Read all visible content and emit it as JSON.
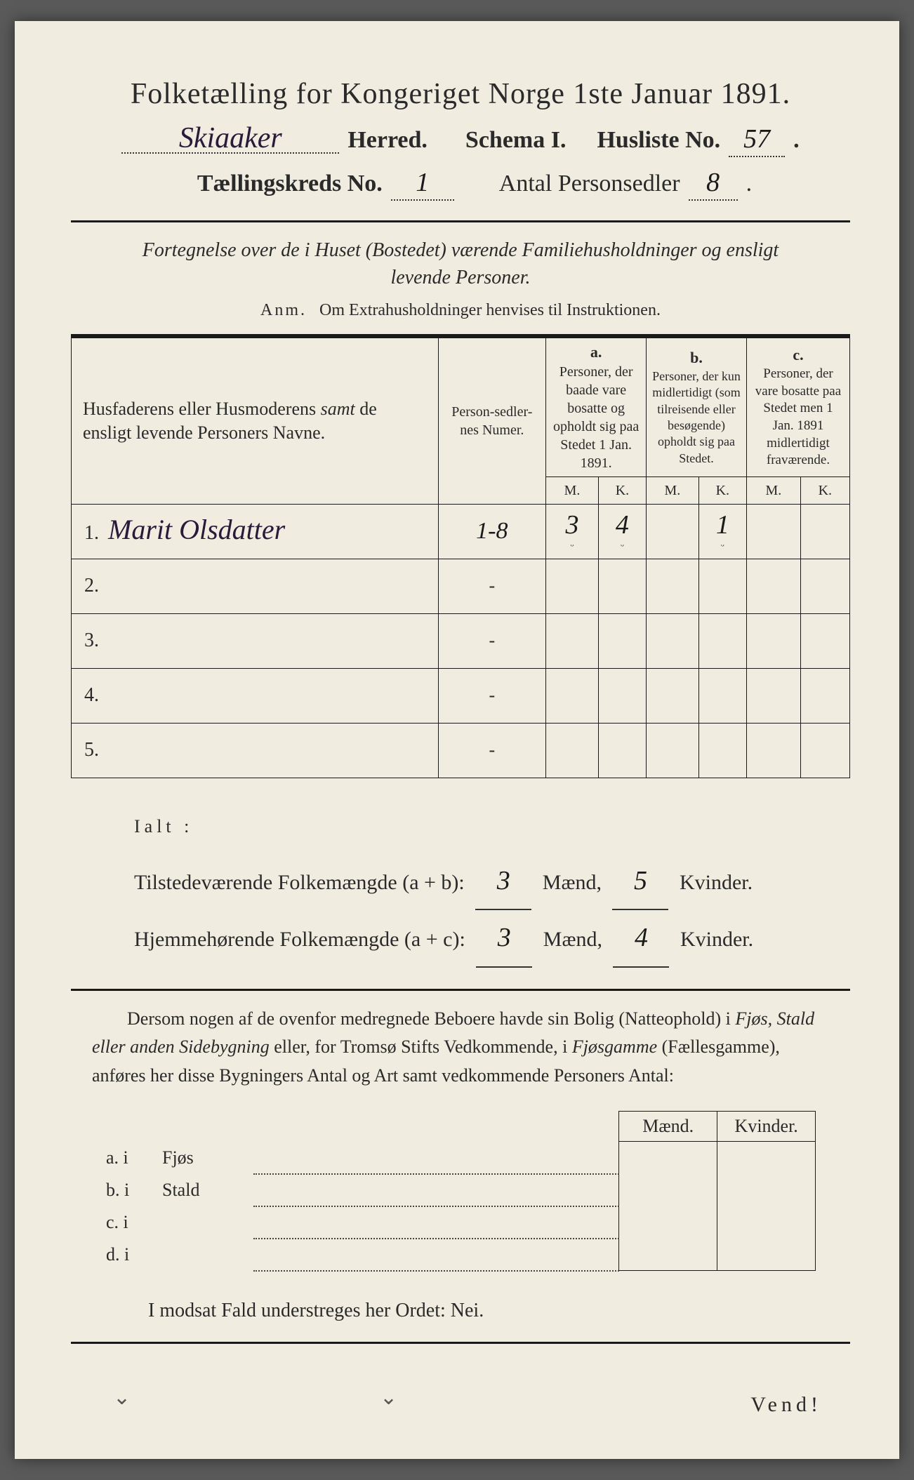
{
  "title": "Folketælling for Kongeriget Norge 1ste Januar 1891.",
  "header": {
    "herred_value": "Skiaaker",
    "herred_label": "Herred.",
    "schema_label": "Schema I.",
    "husliste_label": "Husliste No.",
    "husliste_value": "57",
    "kreds_label": "Tællingskreds No.",
    "kreds_value": "1",
    "antal_label": "Antal Personsedler",
    "antal_value": "8"
  },
  "subtitle": "Fortegnelse over de i Huset (Bostedet) værende Familiehusholdninger og ensligt levende Personer.",
  "anm_label": "Anm.",
  "anm_text": "Om Extrahusholdninger henvises til Instruktionen.",
  "table": {
    "col_name": "Husfaderens eller Husmoderens samt de ensligt levende Personers Navne.",
    "col_num": "Person-sedler-nes Numer.",
    "col_a_label": "a.",
    "col_a_text": "Personer, der baade vare bosatte og opholdt sig paa Stedet 1 Jan. 1891.",
    "col_b_label": "b.",
    "col_b_text": "Personer, der kun midlertidigt (som tilreisende eller besøgende) opholdt sig paa Stedet.",
    "col_c_label": "c.",
    "col_c_text": "Personer, der vare bosatte paa Stedet men 1 Jan. 1891 midlertidigt fraværende.",
    "m": "M.",
    "k": "K.",
    "rows": [
      {
        "n": "1.",
        "name": "Marit Olsdatter",
        "num": "1-8",
        "aM": "3",
        "aK": "4",
        "bM": "",
        "bK": "1",
        "cM": "",
        "cK": ""
      },
      {
        "n": "2.",
        "name": "",
        "num": "-",
        "aM": "",
        "aK": "",
        "bM": "",
        "bK": "",
        "cM": "",
        "cK": ""
      },
      {
        "n": "3.",
        "name": "",
        "num": "-",
        "aM": "",
        "aK": "",
        "bM": "",
        "bK": "",
        "cM": "",
        "cK": ""
      },
      {
        "n": "4.",
        "name": "",
        "num": "-",
        "aM": "",
        "aK": "",
        "bM": "",
        "bK": "",
        "cM": "",
        "cK": ""
      },
      {
        "n": "5.",
        "name": "",
        "num": "-",
        "aM": "",
        "aK": "",
        "bM": "",
        "bK": "",
        "cM": "",
        "cK": ""
      }
    ]
  },
  "totals": {
    "ialt": "Ialt :",
    "line1_label": "Tilstedeværende Folkemængde (a + b):",
    "line2_label": "Hjemmehørende Folkemængde (a + c):",
    "maend": "Mænd,",
    "kvinder": "Kvinder.",
    "t1m": "3",
    "t1k": "5",
    "t2m": "3",
    "t2k": "4"
  },
  "para_text_1": "Dersom nogen af de ovenfor medregnede Beboere havde sin Bolig (Natteophold) i ",
  "para_it_1": "Fjøs, Stald eller anden Sidebygning",
  "para_text_2": " eller, for Tromsø Stifts Vedkommende, i ",
  "para_it_2": "Fjøsgamme",
  "para_text_3": " (Fællesgamme), anføres her disse Bygningers Antal og Art samt vedkommende Personers Antal:",
  "fjøs": {
    "maend": "Mænd.",
    "kvinder": "Kvinder.",
    "rows": [
      {
        "l": "a.  i",
        "t": "Fjøs"
      },
      {
        "l": "b.  i",
        "t": "Stald"
      },
      {
        "l": "c.  i",
        "t": ""
      },
      {
        "l": "d.  i",
        "t": ""
      }
    ]
  },
  "nei_line": "I modsat Fald understreges her Ordet: Nei.",
  "vend": "Vend!",
  "colors": {
    "paper": "#f0ece0",
    "ink": "#1a1a1a",
    "handwriting": "#2a1a3a",
    "background": "#5a5a5a"
  },
  "typography": {
    "title_fontsize": 42,
    "header_fontsize": 34,
    "body_fontsize": 26,
    "handwriting_fontsize": 42
  }
}
